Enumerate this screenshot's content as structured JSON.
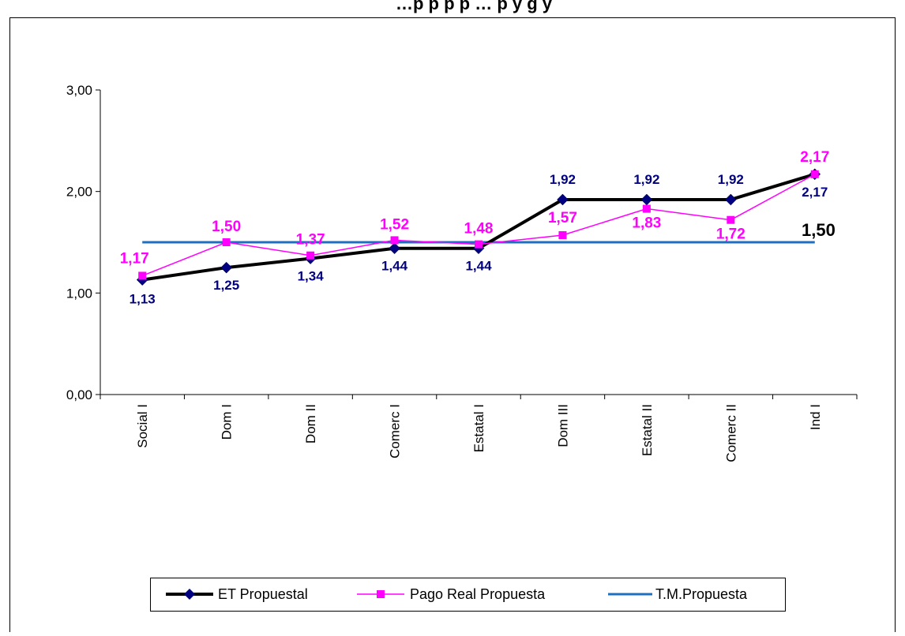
{
  "chart_data": {
    "type": "line",
    "title": "…p p p p … p y g y",
    "categories": [
      "Social I",
      "Dom I",
      "Dom II",
      "Comerc I",
      "Estatal I",
      "Dom III",
      "Estatal II",
      "Comerc II",
      "Ind I"
    ],
    "ylim": [
      0,
      3
    ],
    "yticks": [
      "0,00",
      "1,00",
      "2,00",
      "3,00"
    ],
    "yticks_values": [
      0,
      1,
      2,
      3
    ],
    "grid": false,
    "legend_position": "bottom",
    "series": [
      {
        "name": "ET Propuestal",
        "color": "#000000",
        "marker_color": "#000080",
        "values": [
          1.13,
          1.25,
          1.34,
          1.44,
          1.44,
          1.92,
          1.92,
          1.92,
          2.17
        ],
        "labels": [
          "1,13",
          "1,25",
          "1,34",
          "1,44",
          "1,44",
          "1,92",
          "1,92",
          "1,92",
          "2,17"
        ]
      },
      {
        "name": "Pago Real  Propuesta",
        "color": "#FF00FF",
        "values": [
          1.17,
          1.5,
          1.37,
          1.52,
          1.48,
          1.57,
          1.83,
          1.72,
          2.17
        ],
        "labels": [
          "1,17",
          "1,50",
          "1,37",
          "1,52",
          "1,48",
          "1,57",
          "1,83",
          "1,72",
          "2,17"
        ]
      },
      {
        "name": "T.M.Propuesta",
        "color": "#1F6FC0",
        "value": 1.5,
        "label": "1,50"
      }
    ]
  }
}
